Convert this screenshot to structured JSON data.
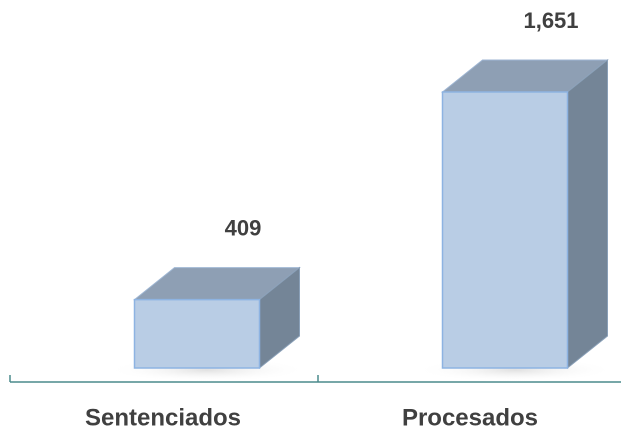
{
  "chart_data": {
    "type": "bar3d",
    "categories": [
      "Sentenciados",
      "Procesados"
    ],
    "values": [
      409,
      1651
    ],
    "value_labels": [
      "409",
      "1,651"
    ],
    "color": "#b9cde5"
  }
}
